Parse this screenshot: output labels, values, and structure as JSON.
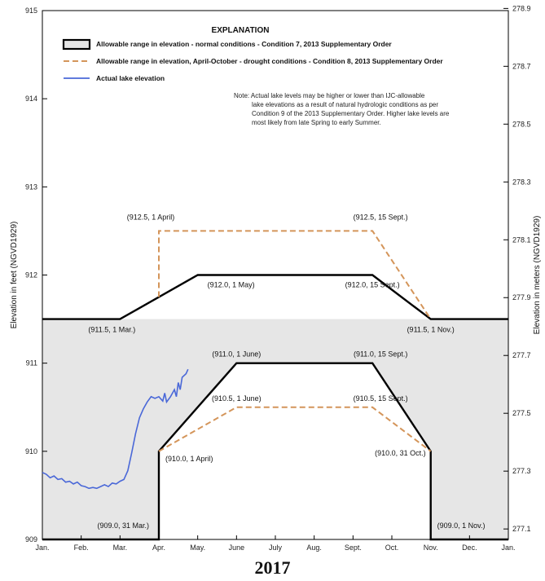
{
  "chart_data": {
    "type": "line",
    "xlabel": "",
    "ylabel": "Elevation in feet (NGVD1929)",
    "ylabel_right": "Elevation in meters (NGVD1929)",
    "year_label": "2017",
    "ylim": [
      909,
      915
    ],
    "xlim": [
      0,
      12
    ],
    "grid": false,
    "month_labels": [
      "Jan.",
      "Feb.",
      "Mar.",
      "Apr.",
      "May.",
      "June",
      "July",
      "Aug.",
      "Sept.",
      "Oct.",
      "Nov.",
      "Dec.",
      "Jan."
    ],
    "month_positions": [
      0,
      1,
      2,
      3,
      4,
      5,
      6,
      7,
      8,
      9,
      10,
      11,
      12
    ],
    "y_ticks_feet": [
      909,
      910,
      911,
      912,
      913,
      914,
      915
    ],
    "y_ticks_meters": [
      "277.1",
      "277.3",
      "277.5",
      "277.7",
      "277.9",
      "278.1",
      "278.3",
      "278.5",
      "278.7",
      "278.9"
    ],
    "legend": {
      "title": "EXPLANATION",
      "placement": "top",
      "entries": [
        "Allowable range in elevation - normal conditions - Condition 7, 2013 Supplementary Order",
        "Allowable range in elevation, April-October - drought conditions - Condition 8, 2013 Supplementary Order",
        "Actual lake elevation"
      ]
    },
    "note_lines": [
      "Note: Actual lake levels may be higher or lower than IJC-allowable",
      "lake elevations as a result of natural hydrologic conditions as per",
      "Condition 9 of the 2013 Supplementary Order. Higher lake levels are",
      "most likely from late Spring to early Summer."
    ],
    "series": [
      {
        "name": "Allowable range in elevation - normal conditions - Condition 7, 2013 Supplementary Order",
        "color": "#000000",
        "style": "solid",
        "upper": [
          [
            0,
            911.5
          ],
          [
            2,
            911.5
          ],
          [
            4,
            912.0
          ],
          [
            8.5,
            912.0
          ],
          [
            10,
            911.5
          ],
          [
            12,
            911.5
          ]
        ],
        "lower": [
          [
            0,
            909.0
          ],
          [
            3,
            909.0
          ],
          [
            3,
            910.0
          ],
          [
            5,
            911.0
          ],
          [
            8.5,
            911.0
          ],
          [
            10,
            910.0
          ],
          [
            10,
            909.0
          ],
          [
            12,
            909.0
          ]
        ]
      },
      {
        "name": "Allowable range in elevation, April-October - drought conditions - Condition 8, 2013 Supplementary Order",
        "color": "#d4955a",
        "style": "dashed",
        "upper": [
          [
            3,
            911.75
          ],
          [
            3,
            912.5
          ],
          [
            8.5,
            912.5
          ],
          [
            10,
            911.5
          ]
        ],
        "lower": [
          [
            3,
            910.0
          ],
          [
            5,
            910.5
          ],
          [
            8.5,
            910.5
          ],
          [
            10,
            910.0
          ]
        ]
      },
      {
        "name": "Actual lake elevation",
        "color": "#4a68d8",
        "style": "solid",
        "points": [
          [
            0.0,
            909.76
          ],
          [
            0.1,
            909.74
          ],
          [
            0.2,
            909.7
          ],
          [
            0.3,
            909.72
          ],
          [
            0.4,
            909.68
          ],
          [
            0.5,
            909.69
          ],
          [
            0.6,
            909.65
          ],
          [
            0.7,
            909.66
          ],
          [
            0.8,
            909.63
          ],
          [
            0.9,
            909.65
          ],
          [
            1.0,
            909.61
          ],
          [
            1.1,
            909.6
          ],
          [
            1.2,
            909.58
          ],
          [
            1.3,
            909.59
          ],
          [
            1.4,
            909.58
          ],
          [
            1.5,
            909.6
          ],
          [
            1.6,
            909.62
          ],
          [
            1.7,
            909.6
          ],
          [
            1.8,
            909.64
          ],
          [
            1.9,
            909.63
          ],
          [
            2.0,
            909.66
          ],
          [
            2.1,
            909.68
          ],
          [
            2.2,
            909.78
          ],
          [
            2.3,
            909.98
          ],
          [
            2.4,
            910.2
          ],
          [
            2.5,
            910.38
          ],
          [
            2.6,
            910.48
          ],
          [
            2.7,
            910.56
          ],
          [
            2.8,
            910.62
          ],
          [
            2.9,
            910.6
          ],
          [
            3.0,
            910.62
          ],
          [
            3.1,
            910.57
          ],
          [
            3.15,
            910.66
          ],
          [
            3.2,
            910.56
          ],
          [
            3.3,
            910.62
          ],
          [
            3.4,
            910.7
          ],
          [
            3.45,
            910.62
          ],
          [
            3.5,
            910.78
          ],
          [
            3.55,
            910.7
          ],
          [
            3.6,
            910.84
          ],
          [
            3.7,
            910.88
          ],
          [
            3.75,
            910.93
          ]
        ]
      }
    ],
    "annotations": [
      {
        "text": "(912.5, 1 April)",
        "x": 3,
        "y": 912.5
      },
      {
        "text": "(912.5, 15 Sept.)",
        "x": 8.5,
        "y": 912.5
      },
      {
        "text": "(912.0, 1 May)",
        "x": 4,
        "y": 912.0
      },
      {
        "text": "(912.0, 15 Sept.)",
        "x": 8.5,
        "y": 912.0
      },
      {
        "text": "(911.5, 1 Mar.)",
        "x": 2,
        "y": 911.5
      },
      {
        "text": "(911.5, 1 Nov.)",
        "x": 10,
        "y": 911.5
      },
      {
        "text": "(911.0, 1 June)",
        "x": 5,
        "y": 911.0
      },
      {
        "text": "(911.0, 15 Sept.)",
        "x": 8.5,
        "y": 911.0
      },
      {
        "text": "(910.5, 1 June)",
        "x": 5,
        "y": 910.5
      },
      {
        "text": "(910.5, 15 Sept.)",
        "x": 8.5,
        "y": 910.5
      },
      {
        "text": "(910.0, 1 April)",
        "x": 3,
        "y": 910.0
      },
      {
        "text": "(910.0, 31 Oct.)",
        "x": 10,
        "y": 910.0
      },
      {
        "text": "(909.0, 31 Mar.)",
        "x": 3,
        "y": 909.0
      },
      {
        "text": "(909.0, 1 Nov.)",
        "x": 10,
        "y": 909.0
      }
    ],
    "colors": {
      "fill": "#e6e6e6",
      "normal": "#000000",
      "drought": "#d4955a",
      "actual": "#4a68d8"
    }
  }
}
